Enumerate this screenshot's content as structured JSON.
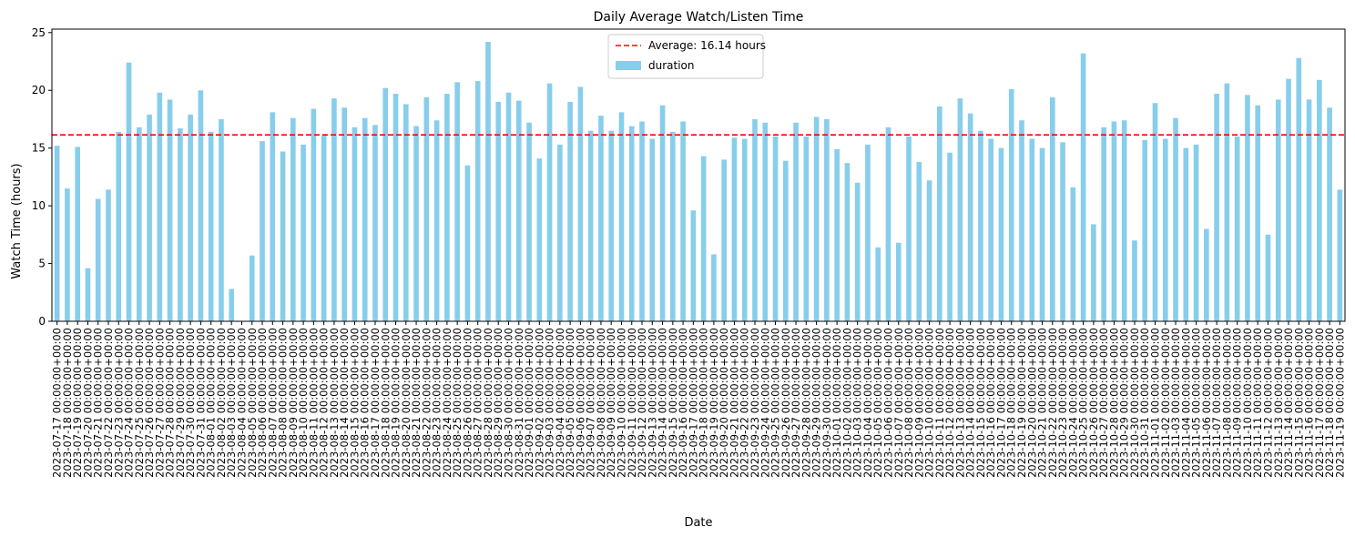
{
  "chart_data": {
    "type": "bar",
    "title": "Daily Average Watch/Listen Time",
    "xlabel": "Date",
    "ylabel": "Watch Time (hours)",
    "ylim": [
      0,
      25.3
    ],
    "yticks": [
      0,
      5,
      10,
      15,
      20,
      25
    ],
    "grid": false,
    "legend": {
      "placement": "top-center"
    },
    "bar_color": "#87ceeb",
    "reference_line": {
      "value": 16.14,
      "label": "Average: 16.14 hours",
      "color": "#ff0000",
      "style": "dashed"
    },
    "categories": [
      "2023-07-17 00:00:00+00:00",
      "2023-07-18 00:00:00+00:00",
      "2023-07-19 00:00:00+00:00",
      "2023-07-20 00:00:00+00:00",
      "2023-07-21 00:00:00+00:00",
      "2023-07-22 00:00:00+00:00",
      "2023-07-23 00:00:00+00:00",
      "2023-07-24 00:00:00+00:00",
      "2023-07-25 00:00:00+00:00",
      "2023-07-26 00:00:00+00:00",
      "2023-07-27 00:00:00+00:00",
      "2023-07-28 00:00:00+00:00",
      "2023-07-29 00:00:00+00:00",
      "2023-07-30 00:00:00+00:00",
      "2023-07-31 00:00:00+00:00",
      "2023-08-01 00:00:00+00:00",
      "2023-08-02 00:00:00+00:00",
      "2023-08-03 00:00:00+00:00",
      "2023-08-04 00:00:00+00:00",
      "2023-08-05 00:00:00+00:00",
      "2023-08-06 00:00:00+00:00",
      "2023-08-07 00:00:00+00:00",
      "2023-08-08 00:00:00+00:00",
      "2023-08-09 00:00:00+00:00",
      "2023-08-10 00:00:00+00:00",
      "2023-08-11 00:00:00+00:00",
      "2023-08-12 00:00:00+00:00",
      "2023-08-13 00:00:00+00:00",
      "2023-08-14 00:00:00+00:00",
      "2023-08-15 00:00:00+00:00",
      "2023-08-16 00:00:00+00:00",
      "2023-08-17 00:00:00+00:00",
      "2023-08-18 00:00:00+00:00",
      "2023-08-19 00:00:00+00:00",
      "2023-08-20 00:00:00+00:00",
      "2023-08-21 00:00:00+00:00",
      "2023-08-22 00:00:00+00:00",
      "2023-08-23 00:00:00+00:00",
      "2023-08-24 00:00:00+00:00",
      "2023-08-25 00:00:00+00:00",
      "2023-08-26 00:00:00+00:00",
      "2023-08-27 00:00:00+00:00",
      "2023-08-28 00:00:00+00:00",
      "2023-08-29 00:00:00+00:00",
      "2023-08-30 00:00:00+00:00",
      "2023-08-31 00:00:00+00:00",
      "2023-09-01 00:00:00+00:00",
      "2023-09-02 00:00:00+00:00",
      "2023-09-03 00:00:00+00:00",
      "2023-09-04 00:00:00+00:00",
      "2023-09-05 00:00:00+00:00",
      "2023-09-06 00:00:00+00:00",
      "2023-09-07 00:00:00+00:00",
      "2023-09-08 00:00:00+00:00",
      "2023-09-09 00:00:00+00:00",
      "2023-09-10 00:00:00+00:00",
      "2023-09-11 00:00:00+00:00",
      "2023-09-12 00:00:00+00:00",
      "2023-09-13 00:00:00+00:00",
      "2023-09-14 00:00:00+00:00",
      "2023-09-15 00:00:00+00:00",
      "2023-09-16 00:00:00+00:00",
      "2023-09-17 00:00:00+00:00",
      "2023-09-18 00:00:00+00:00",
      "2023-09-19 00:00:00+00:00",
      "2023-09-20 00:00:00+00:00",
      "2023-09-21 00:00:00+00:00",
      "2023-09-22 00:00:00+00:00",
      "2023-09-23 00:00:00+00:00",
      "2023-09-24 00:00:00+00:00",
      "2023-09-25 00:00:00+00:00",
      "2023-09-26 00:00:00+00:00",
      "2023-09-27 00:00:00+00:00",
      "2023-09-28 00:00:00+00:00",
      "2023-09-29 00:00:00+00:00",
      "2023-09-30 00:00:00+00:00",
      "2023-10-01 00:00:00+00:00",
      "2023-10-02 00:00:00+00:00",
      "2023-10-03 00:00:00+00:00",
      "2023-10-04 00:00:00+00:00",
      "2023-10-05 00:00:00+00:00",
      "2023-10-06 00:00:00+00:00",
      "2023-10-07 00:00:00+00:00",
      "2023-10-08 00:00:00+00:00",
      "2023-10-09 00:00:00+00:00",
      "2023-10-10 00:00:00+00:00",
      "2023-10-11 00:00:00+00:00",
      "2023-10-12 00:00:00+00:00",
      "2023-10-13 00:00:00+00:00",
      "2023-10-14 00:00:00+00:00",
      "2023-10-15 00:00:00+00:00",
      "2023-10-16 00:00:00+00:00",
      "2023-10-17 00:00:00+00:00",
      "2023-10-18 00:00:00+00:00",
      "2023-10-19 00:00:00+00:00",
      "2023-10-20 00:00:00+00:00",
      "2023-10-21 00:00:00+00:00",
      "2023-10-22 00:00:00+00:00",
      "2023-10-23 00:00:00+00:00",
      "2023-10-24 00:00:00+00:00",
      "2023-10-25 00:00:00+00:00",
      "2023-10-26 00:00:00+00:00",
      "2023-10-27 00:00:00+00:00",
      "2023-10-28 00:00:00+00:00",
      "2023-10-29 00:00:00+00:00",
      "2023-10-30 00:00:00+00:00",
      "2023-10-31 00:00:00+00:00",
      "2023-11-01 00:00:00+00:00",
      "2023-11-02 00:00:00+00:00",
      "2023-11-03 00:00:00+00:00",
      "2023-11-04 00:00:00+00:00",
      "2023-11-05 00:00:00+00:00",
      "2023-11-06 00:00:00+00:00",
      "2023-11-07 00:00:00+00:00",
      "2023-11-08 00:00:00+00:00",
      "2023-11-09 00:00:00+00:00",
      "2023-11-10 00:00:00+00:00",
      "2023-11-11 00:00:00+00:00",
      "2023-11-12 00:00:00+00:00",
      "2023-11-13 00:00:00+00:00",
      "2023-11-14 00:00:00+00:00",
      "2023-11-15 00:00:00+00:00",
      "2023-11-16 00:00:00+00:00",
      "2023-11-17 00:00:00+00:00",
      "2023-11-18 00:00:00+00:00",
      "2023-11-19 00:00:00+00:00"
    ],
    "series": [
      {
        "name": "duration",
        "values": [
          15.2,
          11.5,
          15.1,
          4.6,
          10.6,
          11.4,
          16.4,
          22.4,
          16.8,
          17.9,
          19.8,
          19.2,
          16.7,
          17.9,
          20.0,
          16.4,
          17.5,
          2.8,
          0,
          5.7,
          15.6,
          18.1,
          14.7,
          17.6,
          15.3,
          18.4,
          16.1,
          19.3,
          18.5,
          16.8,
          17.6,
          17.0,
          20.2,
          19.7,
          18.8,
          16.9,
          19.4,
          17.4,
          19.7,
          20.7,
          13.5,
          20.8,
          24.2,
          19.0,
          19.8,
          19.1,
          17.2,
          14.1,
          20.6,
          15.3,
          19.0,
          20.3,
          16.5,
          17.8,
          16.5,
          18.1,
          16.9,
          17.3,
          15.8,
          18.7,
          16.4,
          17.3,
          9.6,
          14.3,
          5.8,
          14.0,
          15.9,
          15.8,
          17.5,
          17.2,
          16.0,
          13.9,
          17.2,
          16.0,
          17.7,
          17.5,
          14.9,
          13.7,
          12.0,
          15.3,
          6.4,
          16.8,
          6.8,
          16.0,
          13.8,
          12.2,
          18.6,
          14.6,
          19.3,
          18.0,
          16.5,
          15.8,
          15.0,
          20.1,
          17.4,
          15.8,
          15.0,
          19.4,
          15.5,
          11.6,
          23.2,
          8.4,
          16.8,
          17.3,
          17.4,
          7.0,
          15.7,
          18.9,
          15.8,
          17.6,
          15.0,
          15.3,
          8.0,
          19.7,
          20.6,
          16.0,
          19.6,
          18.7,
          7.5,
          19.2,
          21.0,
          22.8,
          19.2,
          20.9,
          18.5,
          11.4
        ]
      }
    ]
  }
}
